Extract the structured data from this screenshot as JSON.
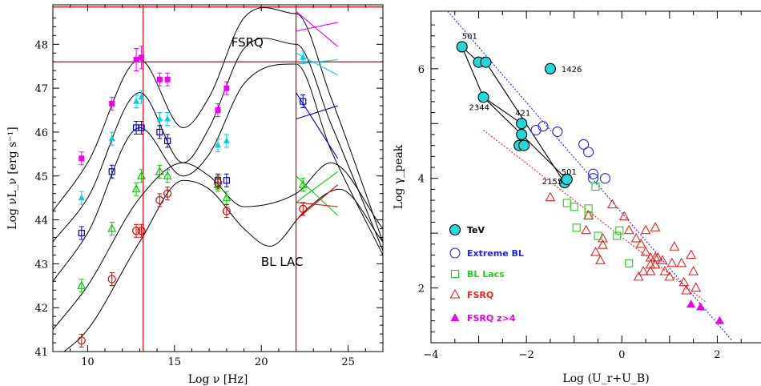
{
  "chart_data": [
    {
      "type": "line",
      "xlabel": "Log ν [Hz]",
      "ylabel": "Log νL_ν [erg s⁻¹]",
      "xlim": [
        8,
        27
      ],
      "ylim": [
        41,
        48.9
      ],
      "xticks": [
        10,
        15,
        20,
        25
      ],
      "yticks": [
        41,
        42,
        43,
        44,
        45,
        46,
        47,
        48
      ],
      "annotations": [
        "FSRQ",
        "BL LAC"
      ],
      "reference_lines": {
        "vertical_x": [
          13.2,
          22
        ],
        "horizontal_y": [
          47.6,
          48.85
        ],
        "color": "#cc0000"
      },
      "series": [
        {
          "color": "#ee00ee",
          "model": {
            "x": [
              8,
              10,
              13,
              15.5,
              17,
              19,
              22,
              24,
              27
            ],
            "y": [
              44.2,
              45.3,
              47.65,
              46.1,
              46.8,
              48.6,
              48.7,
              46.8,
              43.5
            ]
          },
          "points": [
            [
              9.65,
              45.4
            ],
            [
              11.4,
              46.65
            ],
            [
              12.8,
              47.65
            ],
            [
              13.1,
              47.7
            ],
            [
              14.15,
              47.2
            ],
            [
              14.6,
              47.2
            ],
            [
              17.5,
              46.5
            ],
            [
              18,
              47
            ]
          ]
        },
        {
          "color": "#00d0e0",
          "model": {
            "x": [
              8,
              10,
              13,
              15.5,
              17,
              19,
              22,
              24,
              27
            ],
            "y": [
              43.5,
              44.5,
              46.9,
              45.3,
              46.1,
              47.9,
              48.0,
              46.2,
              43.3
            ]
          },
          "points": [
            [
              9.65,
              44.5
            ],
            [
              11.4,
              45.85
            ],
            [
              12.8,
              46.7
            ],
            [
              13.1,
              46.8
            ],
            [
              14.15,
              46.3
            ],
            [
              14.6,
              46.3
            ],
            [
              17.5,
              45.7
            ],
            [
              18,
              45.8
            ],
            [
              22.4,
              47.7
            ]
          ]
        },
        {
          "color": "#0000cc",
          "model": {
            "x": [
              8,
              10,
              13,
              15.5,
              17,
              19,
              22,
              24,
              27
            ],
            "y": [
              42.6,
              43.7,
              46.1,
              45.0,
              45.5,
              47.1,
              47.55,
              45.6,
              43.2
            ]
          },
          "points": [
            [
              9.65,
              43.7
            ],
            [
              11.4,
              45.1
            ],
            [
              12.8,
              46.1
            ],
            [
              13.1,
              46.1
            ],
            [
              14.15,
              46.0
            ],
            [
              14.6,
              45.8
            ],
            [
              17.5,
              44.9
            ],
            [
              18,
              44.9
            ],
            [
              22.4,
              46.7
            ]
          ]
        },
        {
          "color": "#00cc00",
          "model": {
            "x": [
              8,
              10,
              13,
              15.5,
              17,
              19,
              22,
              24,
              27
            ],
            "y": [
              41.5,
              42.5,
              44.5,
              45.3,
              45.0,
              44.3,
              44.6,
              45.3,
              43.8
            ]
          },
          "points": [
            [
              9.65,
              42.5
            ],
            [
              11.4,
              43.8
            ],
            [
              12.8,
              44.7
            ],
            [
              13.1,
              45.0
            ],
            [
              14.15,
              45.1
            ],
            [
              14.6,
              45.0
            ],
            [
              17.5,
              44.8
            ],
            [
              18,
              44.5
            ],
            [
              22.4,
              44.8
            ]
          ]
        },
        {
          "color": "#e00000",
          "model": {
            "x": [
              8,
              10,
              13,
              15.5,
              17,
              19,
              20.5,
              22.5,
              24.5,
              27
            ],
            "y": [
              40.8,
              41.5,
              43.5,
              44.9,
              44.7,
              43.8,
              43.4,
              44.2,
              44.7,
              43.5
            ]
          },
          "points": [
            [
              9.65,
              41.25
            ],
            [
              11.4,
              42.65
            ],
            [
              12.8,
              43.75
            ],
            [
              13.1,
              43.75
            ],
            [
              14.15,
              44.45
            ],
            [
              14.6,
              44.6
            ],
            [
              17.5,
              44.85
            ],
            [
              18,
              44.2
            ],
            [
              22.4,
              44.25
            ]
          ]
        }
      ]
    },
    {
      "type": "scatter",
      "xlabel": "Log (U_r+U_B)",
      "ylabel": "Log γ_peak",
      "xlim": [
        -4,
        3
      ],
      "ylim": [
        1,
        7.05
      ],
      "xticks": [
        -4,
        -2,
        0,
        2
      ],
      "yticks": [
        2,
        4,
        6
      ],
      "legend": "lower-left",
      "series": [
        {
          "name": "TeV",
          "marker": "filled-circle",
          "color": "#22d8d8",
          "points": [
            [
              -3.35,
              6.4
            ],
            [
              -3.0,
              6.12
            ],
            [
              -2.85,
              6.12
            ],
            [
              -2.9,
              5.48
            ],
            [
              -2.1,
              5.0
            ],
            [
              -2.1,
              4.8
            ],
            [
              -2.15,
              4.6
            ],
            [
              -2.05,
              4.6
            ],
            [
              -1.2,
              3.92
            ],
            [
              -1.15,
              3.98
            ],
            [
              -1.5,
              6.0
            ]
          ],
          "labels": [
            {
              "text": "501",
              "x": -3.35,
              "y": 6.4
            },
            {
              "text": "1426",
              "x": -1.5,
              "y": 6.0
            },
            {
              "text": "2344",
              "x": -2.9,
              "y": 5.48
            },
            {
              "text": "421",
              "x": -2.1,
              "y": 5.0
            },
            {
              "text": "501",
              "x": -1.2,
              "y": 3.92
            },
            {
              "text": "2155",
              "x": -1.2,
              "y": 3.92
            }
          ]
        },
        {
          "name": "Extreme BL",
          "marker": "open-circle",
          "color": "#2222ee",
          "points": [
            [
              -1.8,
              4.88
            ],
            [
              -1.65,
              4.95
            ],
            [
              -1.35,
              4.85
            ],
            [
              -0.8,
              4.62
            ],
            [
              -0.7,
              4.48
            ],
            [
              -0.6,
              4.08
            ],
            [
              -0.6,
              4.0
            ],
            [
              -0.35,
              4.0
            ]
          ]
        },
        {
          "name": "BL Lacs",
          "marker": "open-square",
          "color": "#22cc22",
          "points": [
            [
              -1.15,
              3.55
            ],
            [
              -1.0,
              3.48
            ],
            [
              -0.7,
              3.45
            ],
            [
              -0.7,
              3.32
            ],
            [
              -0.95,
              3.1
            ],
            [
              -0.5,
              2.95
            ],
            [
              -0.1,
              2.95
            ],
            [
              -0.05,
              3.05
            ],
            [
              0.15,
              2.45
            ],
            [
              -0.55,
              3.85
            ]
          ]
        },
        {
          "name": "FSRQ",
          "marker": "open-triangle",
          "color": "#ee2222",
          "points": [
            [
              -1.5,
              3.65
            ],
            [
              -0.7,
              3.32
            ],
            [
              -0.75,
              3.05
            ],
            [
              -0.4,
              2.9
            ],
            [
              -0.4,
              2.78
            ],
            [
              -0.2,
              3.52
            ],
            [
              -0.55,
              2.65
            ],
            [
              -0.45,
              2.5
            ],
            [
              0.05,
              3.3
            ],
            [
              0.15,
              3.05
            ],
            [
              0.3,
              2.9
            ],
            [
              0.4,
              2.8
            ],
            [
              0.5,
              3.05
            ],
            [
              0.7,
              3.1
            ],
            [
              0.5,
              2.65
            ],
            [
              0.6,
              2.55
            ],
            [
              0.7,
              2.55
            ],
            [
              0.85,
              2.5
            ],
            [
              0.6,
              2.42
            ],
            [
              0.7,
              2.42
            ],
            [
              0.45,
              2.3
            ],
            [
              0.6,
              2.3
            ],
            [
              0.35,
              2.2
            ],
            [
              0.9,
              2.3
            ],
            [
              1.0,
              2.2
            ],
            [
              1.05,
              2.45
            ],
            [
              0.75,
              2.55
            ],
            [
              1.25,
              2.45
            ],
            [
              1.45,
              2.6
            ],
            [
              1.5,
              2.3
            ],
            [
              1.3,
              2.1
            ],
            [
              1.55,
              2.0
            ],
            [
              1.35,
              1.95
            ],
            [
              1.1,
              2.75
            ]
          ]
        },
        {
          "name": "FSRQ z>4",
          "marker": "filled-triangle",
          "color": "#ee00ee",
          "points": [
            [
              1.45,
              1.7
            ],
            [
              1.65,
              1.65
            ],
            [
              2.05,
              1.4
            ]
          ]
        }
      ],
      "fits": [
        {
          "color": "#2222ee",
          "style": "dotted",
          "x": [
            -3.65,
            2.3
          ],
          "y": [
            7.05,
            1.05
          ]
        },
        {
          "color": "#ee2222",
          "style": "dotted",
          "x": [
            -2.9,
            1.75
          ],
          "y": [
            4.88,
            1.75
          ]
        }
      ]
    }
  ]
}
